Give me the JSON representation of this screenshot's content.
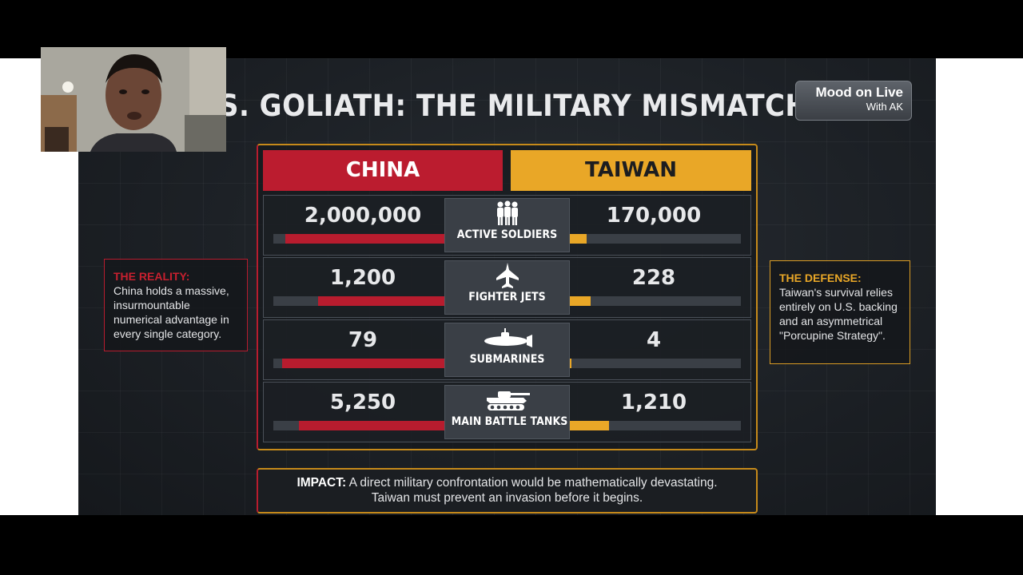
{
  "slide": {
    "title": "S. GOLIATH: THE MILITARY MISMATCH",
    "brand": {
      "line1": "Mood on Live",
      "line2": "With AK"
    },
    "headers": {
      "china": "CHINA",
      "taiwan": "TAIWAN"
    },
    "rows": [
      {
        "category": "ACTIVE SOLDIERS",
        "icon": "soldiers-icon",
        "china_label": "2,000,000",
        "taiwan_label": "170,000",
        "china_fill": 0.93,
        "taiwan_fill": 0.1
      },
      {
        "category": "FIGHTER JETS",
        "icon": "fighter-jet-icon",
        "china_label": "1,200",
        "taiwan_label": "228",
        "china_fill": 0.74,
        "taiwan_fill": 0.12
      },
      {
        "category": "SUBMARINES",
        "icon": "submarine-icon",
        "china_label": "79",
        "taiwan_label": "4",
        "china_fill": 0.95,
        "taiwan_fill": 0.01
      },
      {
        "category": "MAIN BATTLE TANKS",
        "icon": "tank-icon",
        "china_label": "5,250",
        "taiwan_label": "1,210",
        "china_fill": 0.85,
        "taiwan_fill": 0.23
      }
    ],
    "reality": {
      "heading": "THE REALITY:",
      "body": "China holds a massive, insurmountable numerical advantage in every single category."
    },
    "defense": {
      "heading": "THE DEFENSE:",
      "body": "Taiwan's survival relies entirely on U.S. backing and an asymmetrical \"Porcupine Strategy\"."
    },
    "impact": {
      "label": "IMPACT:",
      "line1": " A direct military confrontation would be mathematically devastating.",
      "line2": "Taiwan must prevent an invasion before it begins."
    }
  },
  "colors": {
    "china_red": "#b81c2e",
    "taiwan_gold": "#e9a727",
    "background": "#1c2025"
  }
}
